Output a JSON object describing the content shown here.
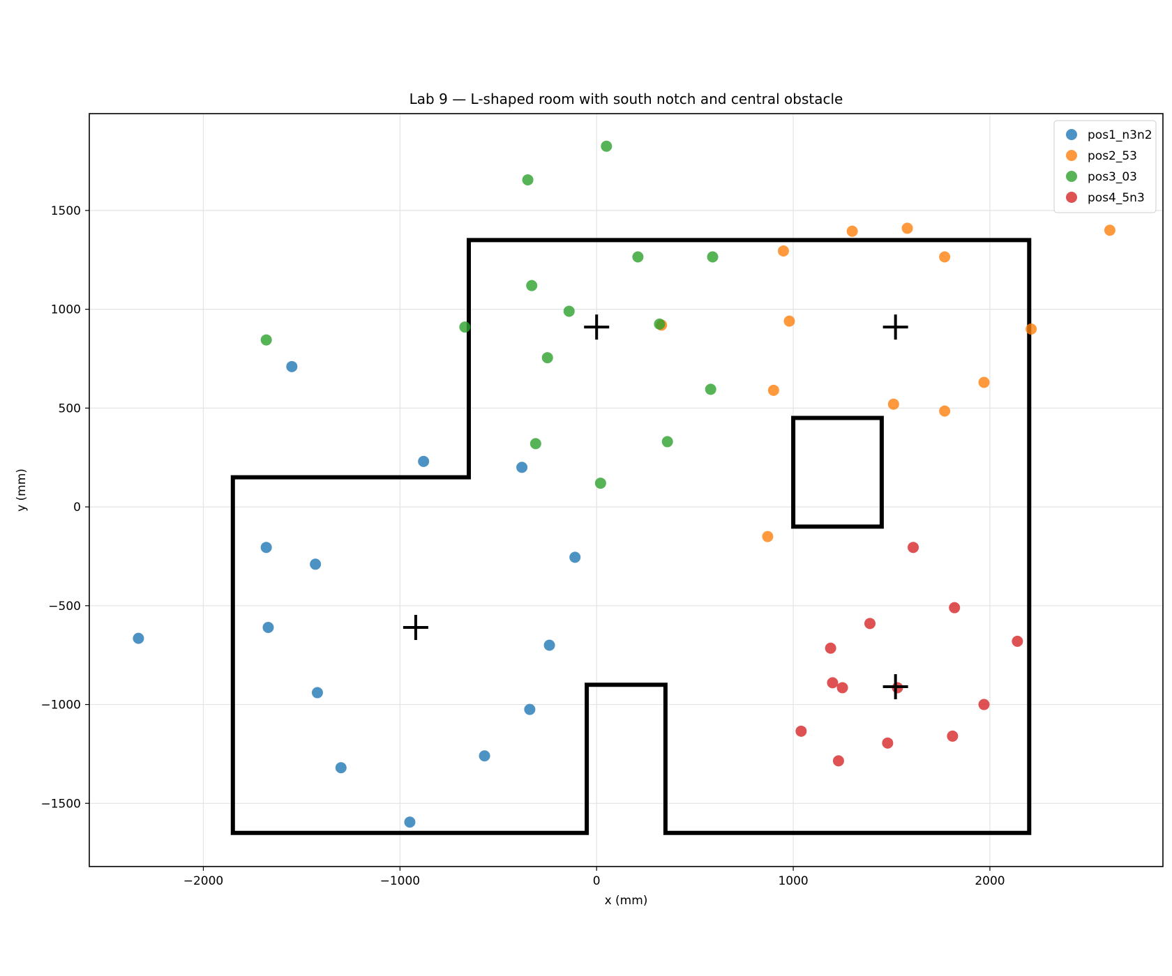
{
  "chart_data": {
    "type": "scatter",
    "title": "Lab 9 — L-shaped room with south notch and central obstacle",
    "xlabel": "x (mm)",
    "ylabel": "y (mm)",
    "xlim": [
      -2580,
      2880
    ],
    "ylim": [
      -1820,
      1990
    ],
    "xticks": [
      -2000,
      -1000,
      0,
      1000,
      2000
    ],
    "yticks": [
      -1500,
      -1000,
      -500,
      0,
      500,
      1000,
      1500
    ],
    "grid": true,
    "legend_position": "top-right",
    "series": [
      {
        "name": "pos1_n3n2",
        "color": "#1f77b4",
        "points": [
          [
            -1550,
            710
          ],
          [
            -880,
            230
          ],
          [
            -380,
            200
          ],
          [
            -1680,
            -205
          ],
          [
            -1430,
            -290
          ],
          [
            -110,
            -255
          ],
          [
            -2330,
            -665
          ],
          [
            -1670,
            -610
          ],
          [
            -240,
            -700
          ],
          [
            -1420,
            -940
          ],
          [
            -340,
            -1025
          ],
          [
            -1300,
            -1320
          ],
          [
            -570,
            -1260
          ],
          [
            -950,
            -1595
          ]
        ]
      },
      {
        "name": "pos2_53",
        "color": "#ff7f0e",
        "points": [
          [
            1300,
            1395
          ],
          [
            1580,
            1410
          ],
          [
            2610,
            1400
          ],
          [
            950,
            1295
          ],
          [
            1770,
            1265
          ],
          [
            330,
            920
          ],
          [
            980,
            940
          ],
          [
            2210,
            900
          ],
          [
            900,
            590
          ],
          [
            1510,
            520
          ],
          [
            1770,
            485
          ],
          [
            1970,
            630
          ],
          [
            870,
            -150
          ]
        ]
      },
      {
        "name": "pos3_03",
        "color": "#2ca02c",
        "points": [
          [
            50,
            1825
          ],
          [
            -350,
            1655
          ],
          [
            210,
            1265
          ],
          [
            590,
            1265
          ],
          [
            -330,
            1120
          ],
          [
            -140,
            990
          ],
          [
            -670,
            910
          ],
          [
            320,
            925
          ],
          [
            -1680,
            845
          ],
          [
            -250,
            755
          ],
          [
            580,
            595
          ],
          [
            360,
            330
          ],
          [
            -310,
            320
          ],
          [
            20,
            120
          ]
        ]
      },
      {
        "name": "pos4_5n3",
        "color": "#d62728",
        "points": [
          [
            1610,
            -205
          ],
          [
            1820,
            -510
          ],
          [
            1390,
            -590
          ],
          [
            1190,
            -715
          ],
          [
            2140,
            -680
          ],
          [
            1200,
            -890
          ],
          [
            1250,
            -915
          ],
          [
            1530,
            -915
          ],
          [
            1970,
            -1000
          ],
          [
            1040,
            -1135
          ],
          [
            1480,
            -1195
          ],
          [
            1810,
            -1160
          ],
          [
            1230,
            -1285
          ]
        ]
      }
    ],
    "room_outline": [
      [
        -1850,
        150
      ],
      [
        -650,
        150
      ],
      [
        -650,
        1350
      ],
      [
        2200,
        1350
      ],
      [
        2200,
        -1650
      ],
      [
        350,
        -1650
      ],
      [
        350,
        -900
      ],
      [
        -50,
        -900
      ],
      [
        -50,
        -1650
      ],
      [
        -1850,
        -1650
      ]
    ],
    "obstacle_outline": [
      [
        1000,
        450
      ],
      [
        1450,
        450
      ],
      [
        1450,
        -100
      ],
      [
        1000,
        -100
      ]
    ],
    "markers": [
      [
        -920,
        -610
      ],
      [
        0,
        910
      ],
      [
        1520,
        910
      ],
      [
        1520,
        -910
      ]
    ]
  }
}
